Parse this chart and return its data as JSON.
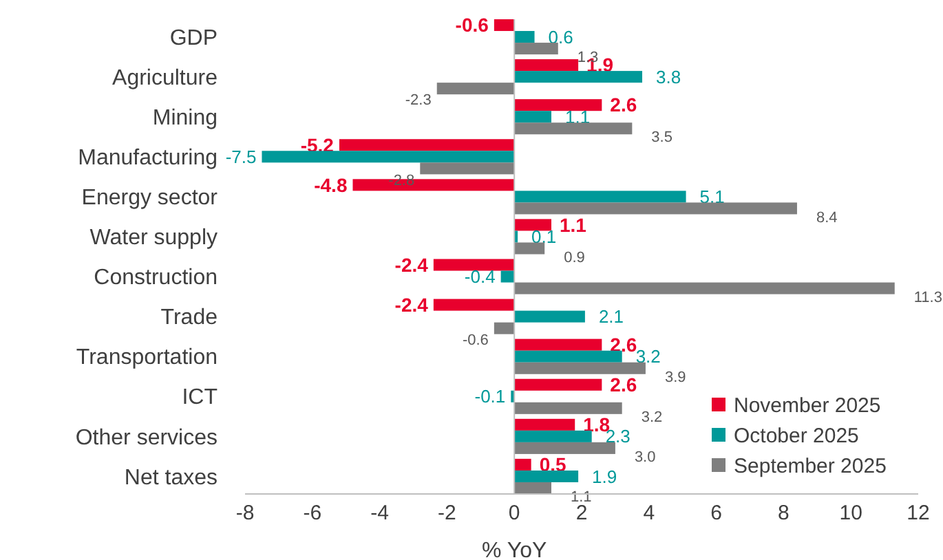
{
  "chart_data": {
    "type": "bar",
    "orientation": "horizontal",
    "xlabel": "% YoY",
    "categories": [
      "GDP",
      "Agriculture",
      "Mining",
      "Manufacturing",
      "Energy sector",
      "Water supply",
      "Construction",
      "Trade",
      "Transportation",
      "ICT",
      "Other services",
      "Net taxes"
    ],
    "series": [
      {
        "name": "November 2025",
        "color": "#e8002d",
        "values": [
          -0.6,
          1.9,
          2.6,
          -5.2,
          -4.8,
          1.1,
          -2.4,
          -2.4,
          2.6,
          2.6,
          1.8,
          0.5
        ],
        "value_labels": [
          "-0.6",
          "1.9",
          "2.6",
          "-5.2",
          "-4.8",
          "1.1",
          "-2.4",
          "-2.4",
          "2.6",
          "2.6",
          "1.8",
          "0.5"
        ]
      },
      {
        "name": "October 2025",
        "color": "#009999",
        "values": [
          0.6,
          3.8,
          1.1,
          -7.5,
          5.1,
          0.1,
          -0.4,
          2.1,
          3.2,
          -0.1,
          2.3,
          1.9
        ],
        "value_labels": [
          "0.6",
          "3.8",
          "1.1",
          "-7.5",
          "5.1",
          "0.1",
          "-0.4",
          "2.1",
          "3.2",
          "-0.1",
          "2.3",
          "1.9"
        ]
      },
      {
        "name": "September 2025",
        "color": "#7f7f7f",
        "values": [
          1.3,
          -2.3,
          3.5,
          -2.8,
          8.4,
          0.9,
          11.3,
          -0.6,
          3.9,
          3.2,
          3.0,
          1.1
        ],
        "value_labels": [
          "1.3",
          "-2.3",
          "3.5",
          "-2.8",
          "8.4",
          "0.9",
          "11.3",
          "-0.6",
          "3.9",
          "3.2",
          "3.0",
          "1.1"
        ]
      }
    ],
    "xlim": [
      -8,
      12
    ],
    "xticks": [
      -8,
      -6,
      -4,
      -2,
      0,
      2,
      4,
      6,
      8,
      10,
      12
    ],
    "legend": "bottom right"
  }
}
